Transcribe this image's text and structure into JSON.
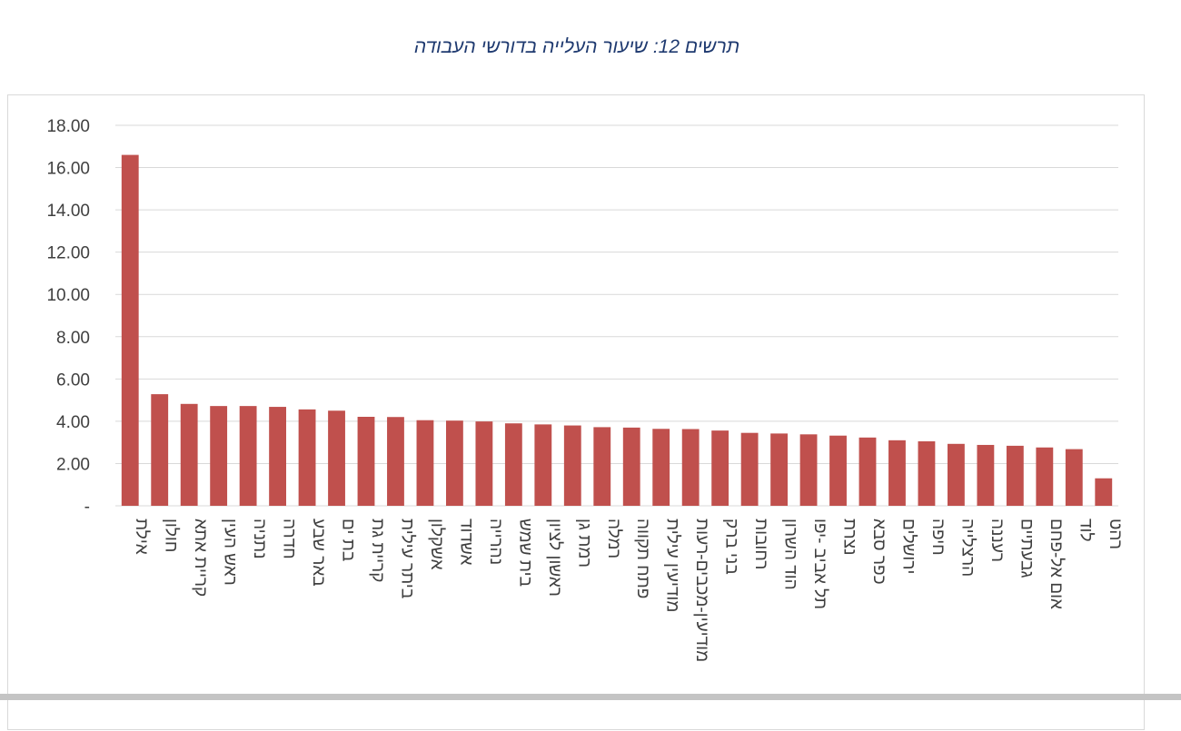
{
  "chart_data": {
    "type": "bar",
    "title": "תרשים 12: שיעור העלייה בדורשי העבודה",
    "xlabel": "",
    "ylabel": "",
    "ylim": [
      0,
      18
    ],
    "y_ticks": [
      "-",
      "2.00",
      "4.00",
      "6.00",
      "8.00",
      "10.00",
      "12.00",
      "14.00",
      "16.00",
      "18.00"
    ],
    "y_tick_values": [
      0,
      2,
      4,
      6,
      8,
      10,
      12,
      14,
      16,
      18
    ],
    "grid": true,
    "legend": "none",
    "bar_color": "#c0504d",
    "categories": [
      "אילת",
      "חולון",
      "קריית אתא",
      "ראש העין",
      "נתניה",
      "חדרה",
      "באר שבע",
      "בת ים",
      "קריית גת",
      "ביתר עילית",
      "אשקלון",
      "אשדוד",
      "נהרייה",
      "בית שמש",
      "ראשון לציון",
      "רמת גן",
      "רמלה",
      "פתח תקווה",
      "מודיעין עילית",
      "מודיעין-מכבים-רעות",
      "בני ברק",
      "רחובות",
      "הוד השרון",
      "תל אביב -יפו",
      "נצרת",
      "כפר סבא",
      "ירושלים",
      "חיפה",
      "הרצלייה",
      "רעננה",
      "גבעתיים",
      "אום אל-פחם",
      "לוד",
      "רהט"
    ],
    "values": [
      16.6,
      5.28,
      4.82,
      4.72,
      4.72,
      4.68,
      4.56,
      4.5,
      4.21,
      4.2,
      4.05,
      4.03,
      3.99,
      3.9,
      3.85,
      3.8,
      3.72,
      3.7,
      3.64,
      3.63,
      3.56,
      3.45,
      3.42,
      3.38,
      3.32,
      3.23,
      3.1,
      3.05,
      2.93,
      2.88,
      2.84,
      2.76,
      2.68,
      1.3
    ]
  }
}
